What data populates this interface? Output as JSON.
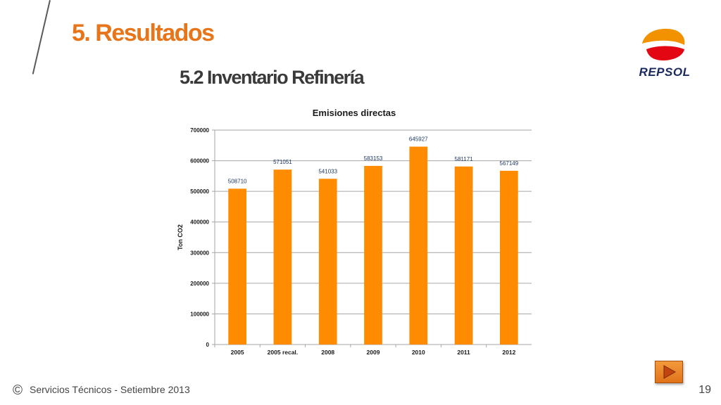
{
  "header": {
    "title": "5.   Resultados",
    "subtitle": "5.2   Inventario Refinería",
    "logo_text": "REPSOL"
  },
  "footer": {
    "copyright_symbol": "©",
    "text": "Servicios Técnicos -  Setiembre 2013",
    "page_number": "19"
  },
  "nav": {
    "next_icon": "play-arrow-icon"
  },
  "colors": {
    "title": "#e8751a",
    "bar": "#ff8c00",
    "text_dark": "#1a1a1a",
    "label_blue": "#1f3864",
    "logo_orange": "#f39200",
    "logo_red": "#e30613",
    "logo_text": "#1b2b5e"
  },
  "chart_data": {
    "type": "bar",
    "title": "Emisiones directas",
    "ylabel": "Ton CO2",
    "xlabel": "",
    "categories": [
      "2005",
      "2005 recal.",
      "2008",
      "2009",
      "2010",
      "2011",
      "2012"
    ],
    "values": [
      508710,
      571051,
      541033,
      583153,
      645927,
      581171,
      567149
    ],
    "value_labels": [
      "508710",
      "571051",
      "541033",
      "583153",
      "645927",
      "581171",
      "567149"
    ],
    "ylim": [
      0,
      700000
    ],
    "yticks": [
      "0",
      "100000",
      "200000",
      "300000",
      "400000",
      "500000",
      "600000",
      "700000"
    ],
    "grid": true,
    "legend": "none"
  }
}
